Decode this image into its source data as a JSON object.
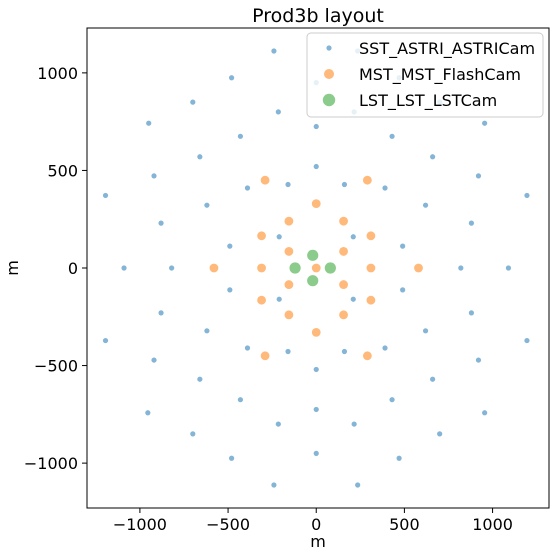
{
  "chart_data": {
    "type": "scatter",
    "title": "Prod3b layout",
    "xlabel": "m",
    "ylabel": "m",
    "xlim": [
      -1300,
      1320
    ],
    "ylim": [
      -1230,
      1230
    ],
    "xticks": [
      -1000,
      -500,
      0,
      500,
      1000
    ],
    "yticks": [
      -1000,
      -500,
      0,
      500,
      1000
    ],
    "xtick_labels": [
      "−1000",
      "−500",
      "0",
      "500",
      "1000"
    ],
    "ytick_labels": [
      "−1000",
      "−500",
      "0",
      "500",
      "1000"
    ],
    "grid": false,
    "legend_position": "top-right",
    "series": [
      {
        "name": "SST_ASTRI_ASTRICam",
        "color": "#1f77b4",
        "marker_size": "small",
        "points": [
          [
            -240,
            1112
          ],
          [
            235,
            1112
          ],
          [
            -480,
            975
          ],
          [
            0,
            950
          ],
          [
            470,
            975
          ],
          [
            -700,
            850
          ],
          [
            700,
            850
          ],
          [
            -950,
            742
          ],
          [
            955,
            742
          ],
          [
            -215,
            800
          ],
          [
            215,
            800
          ],
          [
            0,
            725
          ],
          [
            -430,
            675
          ],
          [
            430,
            675
          ],
          [
            -660,
            570
          ],
          [
            660,
            570
          ],
          [
            0,
            520
          ],
          [
            -920,
            472
          ],
          [
            920,
            472
          ],
          [
            -390,
            410
          ],
          [
            390,
            410
          ],
          [
            -160,
            428
          ],
          [
            160,
            428
          ],
          [
            -1195,
            372
          ],
          [
            1195,
            372
          ],
          [
            -620,
            322
          ],
          [
            620,
            322
          ],
          [
            -880,
            230
          ],
          [
            880,
            230
          ],
          [
            -210,
            160
          ],
          [
            210,
            160
          ],
          [
            -490,
            112
          ],
          [
            490,
            112
          ],
          [
            -1090,
            0
          ],
          [
            -820,
            0
          ],
          [
            820,
            0
          ],
          [
            1090,
            0
          ],
          [
            -490,
            -112
          ],
          [
            490,
            -112
          ],
          [
            -210,
            -160
          ],
          [
            210,
            -160
          ],
          [
            -880,
            -230
          ],
          [
            880,
            -230
          ],
          [
            -620,
            -322
          ],
          [
            620,
            -322
          ],
          [
            -1195,
            -372
          ],
          [
            1195,
            -372
          ],
          [
            -390,
            -410
          ],
          [
            390,
            -410
          ],
          [
            -160,
            -428
          ],
          [
            160,
            -428
          ],
          [
            -920,
            -472
          ],
          [
            920,
            -472
          ],
          [
            0,
            -520
          ],
          [
            -660,
            -570
          ],
          [
            660,
            -570
          ],
          [
            -430,
            -675
          ],
          [
            430,
            -675
          ],
          [
            0,
            -725
          ],
          [
            -955,
            -742
          ],
          [
            955,
            -742
          ],
          [
            -215,
            -800
          ],
          [
            215,
            -800
          ],
          [
            -700,
            -850
          ],
          [
            700,
            -850
          ],
          [
            0,
            -950
          ],
          [
            -480,
            -975
          ],
          [
            470,
            -975
          ],
          [
            -240,
            -1112
          ],
          [
            235,
            -1112
          ]
        ]
      },
      {
        "name": "MST_MST_FlashCam",
        "color": "#ff7f0e",
        "marker_size": "medium",
        "points": [
          [
            -290,
            450
          ],
          [
            290,
            450
          ],
          [
            0,
            330
          ],
          [
            -155,
            240
          ],
          [
            155,
            240
          ],
          [
            -310,
            165
          ],
          [
            310,
            165
          ],
          [
            -155,
            85
          ],
          [
            155,
            85
          ],
          [
            -580,
            0
          ],
          [
            -310,
            0
          ],
          [
            0,
            0
          ],
          [
            310,
            0
          ],
          [
            580,
            0
          ],
          [
            -155,
            -85
          ],
          [
            155,
            -85
          ],
          [
            -310,
            -165
          ],
          [
            310,
            -165
          ],
          [
            -155,
            -240
          ],
          [
            155,
            -240
          ],
          [
            0,
            -330
          ],
          [
            -290,
            -450
          ],
          [
            290,
            -450
          ]
        ]
      },
      {
        "name": "LST_LST_LSTCam",
        "color": "#2ca02c",
        "marker_size": "large",
        "points": [
          [
            -120,
            0
          ],
          [
            -20,
            65
          ],
          [
            -20,
            -65
          ],
          [
            80,
            0
          ]
        ]
      }
    ]
  }
}
